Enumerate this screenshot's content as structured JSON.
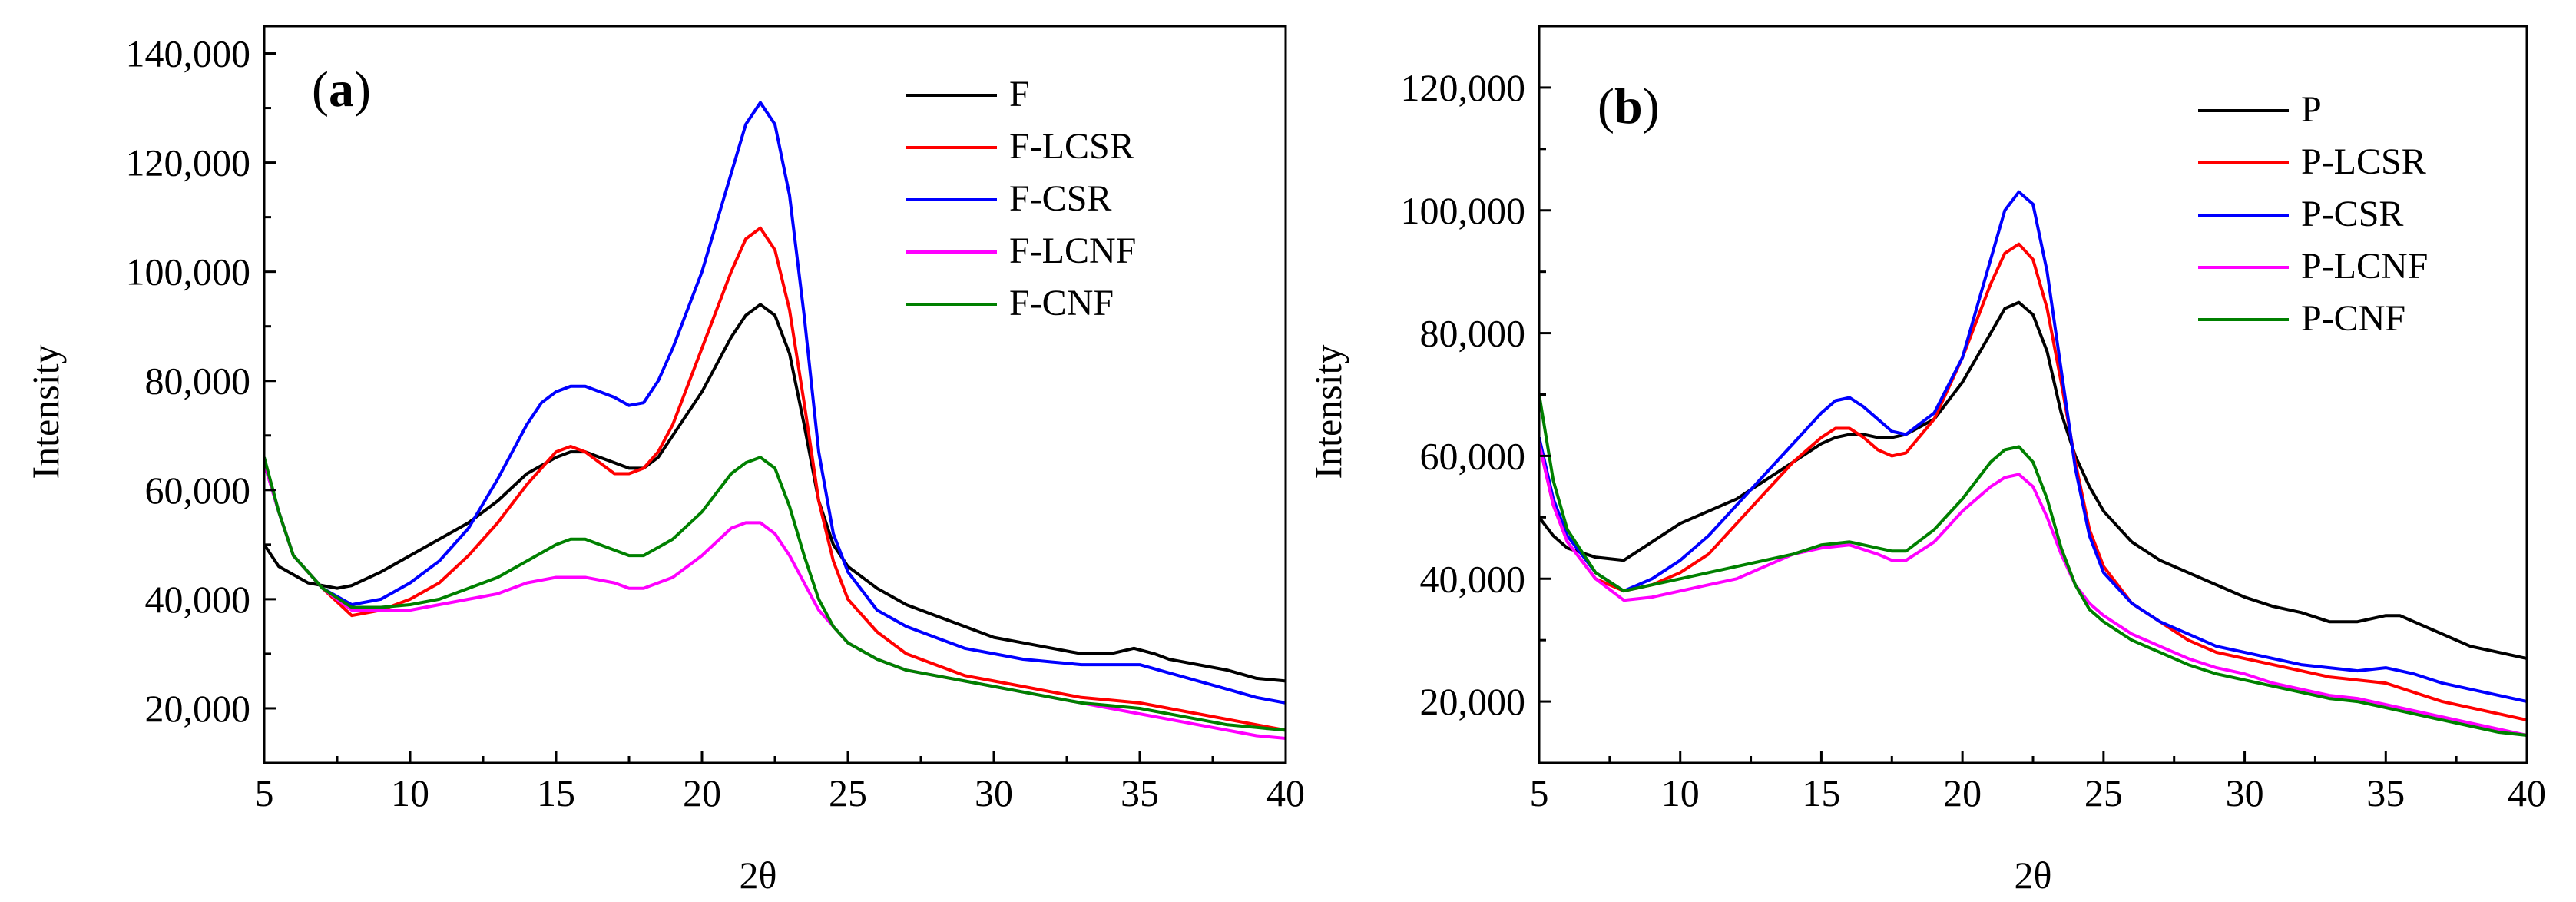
{
  "colors": {
    "black": "#000000",
    "red": "#ff0000",
    "blue": "#0000ff",
    "magenta": "#ff00ff",
    "green": "#008000"
  },
  "chart_data": [
    {
      "type": "line",
      "panel_label_open": "(",
      "panel_label_letter": "a",
      "panel_label_close": ")",
      "xlabel": "2θ",
      "ylabel": "Intensity",
      "xlim": [
        5,
        40
      ],
      "ylim": [
        10000,
        145000
      ],
      "x_ticks": [
        5,
        10,
        15,
        20,
        25,
        30,
        35,
        40
      ],
      "x_tick_labels": [
        "5",
        "10",
        "15",
        "20",
        "25",
        "30",
        "35",
        "40"
      ],
      "y_ticks": [
        20000,
        40000,
        60000,
        80000,
        100000,
        120000,
        140000
      ],
      "y_tick_labels": [
        "20,000",
        "40,000",
        "60,000",
        "80,000",
        "100,000",
        "120,000",
        "140,000"
      ],
      "legend_position": "top-right",
      "series": [
        {
          "name": "F",
          "color": "#000000",
          "x": [
            5,
            5.5,
            6.5,
            7.5,
            8,
            9,
            10,
            11,
            12,
            13,
            14,
            15,
            15.5,
            16,
            16.5,
            17,
            17.5,
            18,
            18.5,
            19,
            20,
            21,
            21.5,
            22,
            22.5,
            23,
            23.5,
            24,
            24.5,
            25,
            26,
            27,
            28,
            29,
            30,
            31,
            32,
            33,
            34,
            34.8,
            35.5,
            36,
            37,
            38,
            39,
            40
          ],
          "y": [
            50000,
            46000,
            43000,
            42000,
            42500,
            45000,
            48000,
            51000,
            54000,
            58000,
            63000,
            66000,
            67000,
            67000,
            66000,
            65000,
            64000,
            64000,
            66000,
            70000,
            78000,
            88000,
            92000,
            94000,
            92000,
            85000,
            72000,
            58000,
            50000,
            46000,
            42000,
            39000,
            37000,
            35000,
            33000,
            32000,
            31000,
            30000,
            30000,
            31000,
            30000,
            29000,
            28000,
            27000,
            25500,
            25000
          ]
        },
        {
          "name": "F-LCSR",
          "color": "#ff0000",
          "x": [
            5,
            5.5,
            6,
            7,
            8,
            9,
            10,
            11,
            12,
            13,
            14,
            15,
            15.5,
            16,
            16.5,
            17,
            17.5,
            18,
            18.5,
            19,
            20,
            21,
            21.5,
            22,
            22.5,
            23,
            23.5,
            24,
            24.5,
            25,
            26,
            27,
            28,
            29,
            30,
            31,
            32,
            33,
            34,
            35,
            36,
            37,
            38,
            39,
            40
          ],
          "y": [
            65000,
            56000,
            48000,
            42000,
            37000,
            38000,
            40000,
            43000,
            48000,
            54000,
            61000,
            67000,
            68000,
            67000,
            65000,
            63000,
            63000,
            64000,
            67000,
            72000,
            86000,
            100000,
            106000,
            108000,
            104000,
            93000,
            76000,
            58000,
            47000,
            40000,
            34000,
            30000,
            28000,
            26000,
            25000,
            24000,
            23000,
            22000,
            21500,
            21000,
            20000,
            19000,
            18000,
            17000,
            16000
          ]
        },
        {
          "name": "F-CSR",
          "color": "#0000ff",
          "x": [
            5,
            5.5,
            6,
            7,
            8,
            9,
            10,
            11,
            12,
            13,
            14,
            14.5,
            15,
            15.5,
            16,
            16.5,
            17,
            17.5,
            18,
            18.5,
            19,
            20,
            21,
            21.5,
            22,
            22.5,
            23,
            23.5,
            24,
            24.5,
            25,
            26,
            27,
            28,
            29,
            30,
            31,
            32,
            33,
            34,
            35,
            36,
            37,
            38,
            39,
            40
          ],
          "y": [
            65000,
            56000,
            48000,
            42000,
            39000,
            40000,
            43000,
            47000,
            53000,
            62000,
            72000,
            76000,
            78000,
            79000,
            79000,
            78000,
            77000,
            75500,
            76000,
            80000,
            86000,
            100000,
            118000,
            127000,
            131000,
            127000,
            114000,
            92000,
            67000,
            52000,
            45000,
            38000,
            35000,
            33000,
            31000,
            30000,
            29000,
            28500,
            28000,
            28000,
            28000,
            26500,
            25000,
            23500,
            22000,
            21000
          ]
        },
        {
          "name": "F-LCNF",
          "color": "#ff00ff",
          "x": [
            5,
            5.5,
            6,
            7,
            8,
            9,
            10,
            11,
            12,
            13,
            14,
            15,
            15.5,
            16,
            17,
            17.5,
            18,
            19,
            20,
            21,
            21.5,
            22,
            22.5,
            23,
            23.5,
            24,
            24.5,
            25,
            26,
            27,
            28,
            29,
            30,
            31,
            32,
            33,
            34,
            35,
            36,
            37,
            38,
            39,
            40
          ],
          "y": [
            65000,
            56000,
            48000,
            42000,
            38000,
            38000,
            38000,
            39000,
            40000,
            41000,
            43000,
            44000,
            44000,
            44000,
            43000,
            42000,
            42000,
            44000,
            48000,
            53000,
            54000,
            54000,
            52000,
            48000,
            43000,
            38000,
            35000,
            32000,
            29000,
            27000,
            26000,
            25000,
            24000,
            23000,
            22000,
            21000,
            20000,
            19000,
            18000,
            17000,
            16000,
            15000,
            14500
          ]
        },
        {
          "name": "F-CNF",
          "color": "#008000",
          "x": [
            5,
            5.5,
            6,
            7,
            8,
            9,
            10,
            11,
            12,
            13,
            14,
            15,
            15.5,
            16,
            17,
            17.5,
            18,
            19,
            20,
            21,
            21.5,
            22,
            22.5,
            23,
            23.5,
            24,
            24.5,
            25,
            26,
            27,
            28,
            29,
            30,
            31,
            32,
            33,
            34,
            35,
            36,
            37,
            38,
            39,
            40
          ],
          "y": [
            66000,
            56000,
            48000,
            42000,
            38500,
            38500,
            39000,
            40000,
            42000,
            44000,
            47000,
            50000,
            51000,
            51000,
            49000,
            48000,
            48000,
            51000,
            56000,
            63000,
            65000,
            66000,
            64000,
            57000,
            48000,
            40000,
            35000,
            32000,
            29000,
            27000,
            26000,
            25000,
            24000,
            23000,
            22000,
            21000,
            20500,
            20000,
            19000,
            18000,
            17000,
            16500,
            16000
          ]
        }
      ]
    },
    {
      "type": "line",
      "panel_label_open": "(",
      "panel_label_letter": "b",
      "panel_label_close": ")",
      "xlabel": "2θ",
      "ylabel": "Intensity",
      "xlim": [
        5,
        40
      ],
      "ylim": [
        10000,
        130000
      ],
      "x_ticks": [
        5,
        10,
        15,
        20,
        25,
        30,
        35,
        40
      ],
      "x_tick_labels": [
        "5",
        "10",
        "15",
        "20",
        "25",
        "30",
        "35",
        "40"
      ],
      "y_ticks": [
        20000,
        40000,
        60000,
        80000,
        100000,
        120000
      ],
      "y_tick_labels": [
        "20,000",
        "40,000",
        "60,000",
        "80,000",
        "100,000",
        "120,000"
      ],
      "legend_position": "top-right",
      "series": [
        {
          "name": "P",
          "color": "#000000",
          "x": [
            5,
            5.5,
            6,
            7,
            8,
            9,
            10,
            11,
            12,
            13,
            14,
            15,
            15.5,
            16,
            16.5,
            17,
            17.5,
            18,
            19,
            20,
            21,
            21.5,
            22,
            22.5,
            23,
            23.5,
            24,
            24.5,
            25,
            26,
            27,
            28,
            29,
            30,
            31,
            32,
            33,
            34,
            35,
            35.5,
            36,
            37,
            38,
            39,
            40
          ],
          "y": [
            50000,
            47000,
            45000,
            43500,
            43000,
            46000,
            49000,
            51000,
            53000,
            56000,
            59000,
            62000,
            63000,
            63500,
            63500,
            63000,
            63000,
            63500,
            66000,
            72000,
            80000,
            84000,
            85000,
            83000,
            77000,
            67000,
            60000,
            55000,
            51000,
            46000,
            43000,
            41000,
            39000,
            37000,
            35500,
            34500,
            33000,
            33000,
            34000,
            34000,
            33000,
            31000,
            29000,
            28000,
            27000
          ]
        },
        {
          "name": "P-LCSR",
          "color": "#ff0000",
          "x": [
            5,
            5.5,
            6,
            7,
            8,
            9,
            10,
            11,
            12,
            13,
            14,
            15,
            15.5,
            16,
            16.5,
            17,
            17.5,
            18,
            19,
            20,
            21,
            21.5,
            22,
            22.5,
            23,
            23.5,
            24,
            24.5,
            25,
            26,
            27,
            28,
            29,
            30,
            31,
            32,
            33,
            34,
            35,
            36,
            37,
            38,
            39,
            40
          ],
          "y": [
            62000,
            52000,
            46000,
            40000,
            38000,
            39000,
            41000,
            44000,
            49000,
            54000,
            59000,
            63000,
            64500,
            64500,
            63000,
            61000,
            60000,
            60500,
            66000,
            76000,
            88000,
            93000,
            94500,
            92000,
            84000,
            72000,
            59000,
            48000,
            42000,
            36000,
            33000,
            30000,
            28000,
            27000,
            26000,
            25000,
            24000,
            23500,
            23000,
            21500,
            20000,
            19000,
            18000,
            17000
          ]
        },
        {
          "name": "P-CSR",
          "color": "#0000ff",
          "x": [
            5,
            5.5,
            6,
            7,
            8,
            9,
            10,
            11,
            12,
            13,
            14,
            15,
            15.5,
            16,
            16.5,
            17,
            17.5,
            18,
            19,
            20,
            21,
            21.5,
            22,
            22.5,
            23,
            23.5,
            24,
            24.5,
            25,
            26,
            27,
            28,
            29,
            30,
            31,
            32,
            33,
            34,
            35,
            36,
            37,
            38,
            39,
            40
          ],
          "y": [
            63000,
            53000,
            47000,
            41000,
            38000,
            40000,
            43000,
            47000,
            52000,
            57000,
            62000,
            67000,
            69000,
            69500,
            68000,
            66000,
            64000,
            63500,
            67000,
            76000,
            92000,
            100000,
            103000,
            101000,
            90000,
            74000,
            58000,
            47000,
            41000,
            36000,
            33000,
            31000,
            29000,
            28000,
            27000,
            26000,
            25500,
            25000,
            25500,
            24500,
            23000,
            22000,
            21000,
            20000
          ]
        },
        {
          "name": "P-LCNF",
          "color": "#ff00ff",
          "x": [
            5,
            5.5,
            6,
            7,
            8,
            9,
            10,
            11,
            12,
            13,
            14,
            15,
            16,
            17,
            17.5,
            18,
            19,
            20,
            21,
            21.5,
            22,
            22.5,
            23,
            23.5,
            24,
            24.5,
            25,
            26,
            27,
            28,
            29,
            30,
            31,
            32,
            33,
            34,
            35,
            36,
            37,
            38,
            39,
            40
          ],
          "y": [
            62000,
            52000,
            46000,
            40000,
            36500,
            37000,
            38000,
            39000,
            40000,
            42000,
            44000,
            45000,
            45500,
            44000,
            43000,
            43000,
            46000,
            51000,
            55000,
            56500,
            57000,
            55000,
            50000,
            44000,
            39000,
            36000,
            34000,
            31000,
            29000,
            27000,
            25500,
            24500,
            23000,
            22000,
            21000,
            20500,
            19500,
            18500,
            17500,
            16500,
            15500,
            14500
          ]
        },
        {
          "name": "P-CNF",
          "color": "#008000",
          "x": [
            5,
            5.5,
            6,
            7,
            8,
            9,
            10,
            11,
            12,
            13,
            14,
            15,
            16,
            17,
            17.5,
            18,
            19,
            20,
            21,
            21.5,
            22,
            22.5,
            23,
            23.5,
            24,
            24.5,
            25,
            26,
            27,
            28,
            29,
            30,
            31,
            32,
            33,
            34,
            35,
            36,
            37,
            38,
            39,
            40
          ],
          "y": [
            70000,
            56000,
            48000,
            41000,
            38000,
            39000,
            40000,
            41000,
            42000,
            43000,
            44000,
            45500,
            46000,
            45000,
            44500,
            44500,
            48000,
            53000,
            59000,
            61000,
            61500,
            59000,
            53000,
            45000,
            39000,
            35000,
            33000,
            30000,
            28000,
            26000,
            24500,
            23500,
            22500,
            21500,
            20500,
            20000,
            19000,
            18000,
            17000,
            16000,
            15000,
            14500
          ]
        }
      ]
    }
  ]
}
